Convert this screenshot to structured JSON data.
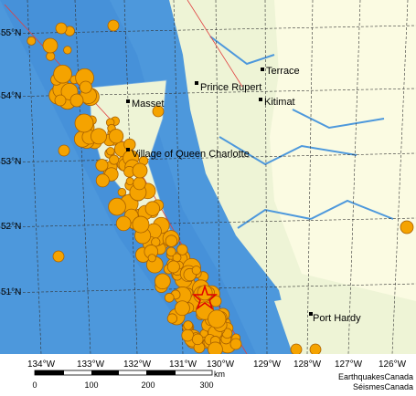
{
  "map": {
    "lat_labels": [
      "55°N",
      "54°N",
      "53°N",
      "52°N",
      "51°N"
    ],
    "lon_labels": [
      "134°W",
      "133°W",
      "132°W",
      "131°W",
      "130°W",
      "129°W",
      "128°W",
      "127°W",
      "126°W"
    ],
    "places": [
      {
        "name": "Terrace"
      },
      {
        "name": "Prince Rupert"
      },
      {
        "name": "Kitimat"
      },
      {
        "name": "Masset"
      },
      {
        "name": "Village of Queen Charlotte"
      },
      {
        "name": "Port Hardy"
      }
    ],
    "scale": {
      "labels": [
        "0",
        "100",
        "200",
        "300"
      ],
      "unit": "km"
    },
    "credits": [
      "EarthquakesCanada",
      "SéismesCanada"
    ]
  }
}
